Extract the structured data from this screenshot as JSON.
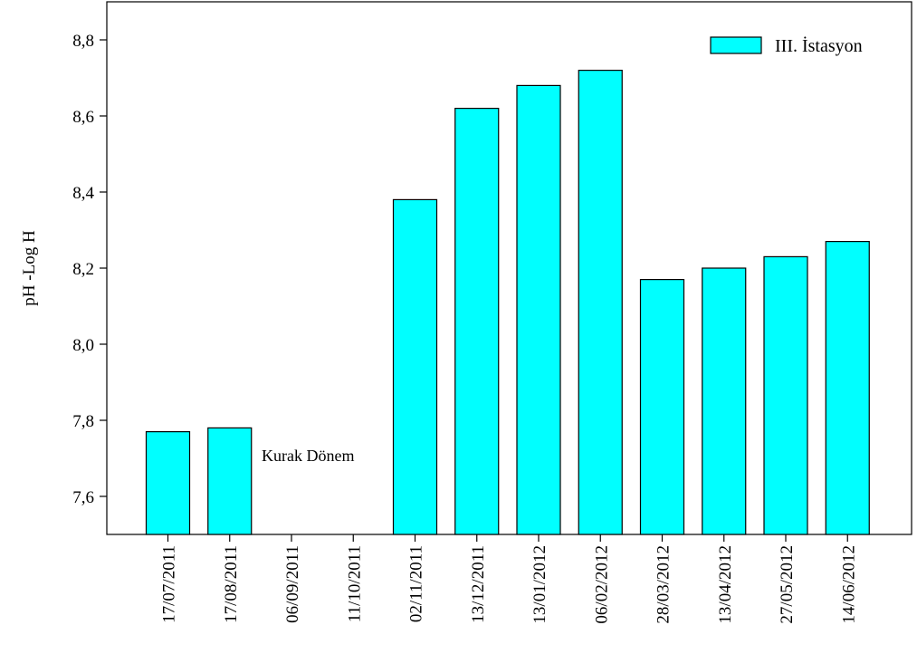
{
  "chart_data": {
    "type": "bar",
    "ylabel": "pH -Log H",
    "xlabel": "",
    "ylim": [
      7.5,
      8.9
    ],
    "yticks": [
      "7,6",
      "7,8",
      "8,0",
      "8,2",
      "8,4",
      "8,6",
      "8,8"
    ],
    "ytick_values": [
      7.6,
      7.8,
      8.0,
      8.2,
      8.4,
      8.6,
      8.8
    ],
    "categories": [
      "17/07/2011",
      "17/08/2011",
      "06/09/2011",
      "11/10/2011",
      "02/11/2011",
      "13/12/2011",
      "13/01/2012",
      "06/02/2012",
      "28/03/2012",
      "13/04/2012",
      "27/05/2012",
      "14/06/2012"
    ],
    "series": [
      {
        "name": "III. İstasyon",
        "values": [
          7.77,
          7.78,
          null,
          null,
          8.38,
          8.62,
          8.68,
          8.72,
          8.17,
          8.2,
          8.23,
          8.27
        ]
      }
    ],
    "annotation": "Kurak Dönem",
    "legend_position": "top-right",
    "grid": false,
    "colors": {
      "bar_fill": "#00FFFF",
      "bar_stroke": "#000000"
    }
  }
}
